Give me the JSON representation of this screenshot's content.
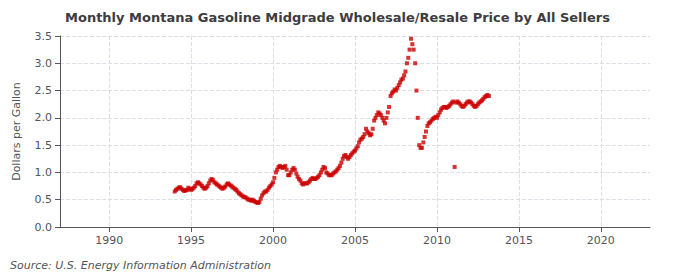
{
  "chart_data": {
    "type": "scatter",
    "title": "Monthly Montana Gasoline Midgrade Wholesale/Resale Price by All Sellers",
    "ylabel": "Dollars per Gallon",
    "annotations": [
      "Source: U.S. Energy Information Administration"
    ],
    "color": "#CC0000",
    "marker": "square",
    "grid": true,
    "xlim": [
      1987,
      2023
    ],
    "ylim": [
      0.0,
      3.5
    ],
    "xticks": [
      1990,
      1995,
      2000,
      2005,
      2010,
      2015,
      2020
    ],
    "yticks": [
      {
        "value": 0.0,
        "label": "0.0"
      },
      0.5,
      {
        "value": 1.0,
        "label": "1.0"
      },
      1.5,
      {
        "value": 2.0,
        "label": "2.0"
      },
      2.5,
      {
        "value": 3.0,
        "label": "3.0"
      },
      3.5
    ],
    "x": [
      1994.0,
      1994.08,
      1994.17,
      1994.25,
      1994.33,
      1994.42,
      1994.5,
      1994.58,
      1994.67,
      1994.75,
      1994.83,
      1994.92,
      1995.0,
      1995.08,
      1995.17,
      1995.25,
      1995.33,
      1995.42,
      1995.5,
      1995.58,
      1995.67,
      1995.75,
      1995.83,
      1995.92,
      1996.0,
      1996.08,
      1996.17,
      1996.25,
      1996.33,
      1996.42,
      1996.5,
      1996.58,
      1996.67,
      1996.75,
      1996.83,
      1996.92,
      1997.0,
      1997.08,
      1997.17,
      1997.25,
      1997.33,
      1997.42,
      1997.5,
      1997.58,
      1997.67,
      1997.75,
      1997.83,
      1997.92,
      1998.0,
      1998.08,
      1998.17,
      1998.25,
      1998.33,
      1998.42,
      1998.5,
      1998.58,
      1998.67,
      1998.75,
      1998.83,
      1998.92,
      1999.0,
      1999.08,
      1999.17,
      1999.25,
      1999.33,
      1999.42,
      1999.5,
      1999.58,
      1999.67,
      1999.75,
      1999.83,
      1999.92,
      2000.0,
      2000.08,
      2000.17,
      2000.25,
      2000.33,
      2000.42,
      2000.5,
      2000.58,
      2000.67,
      2000.75,
      2000.83,
      2000.92,
      2001.0,
      2001.08,
      2001.17,
      2001.25,
      2001.33,
      2001.42,
      2001.5,
      2001.58,
      2001.67,
      2001.75,
      2001.83,
      2001.92,
      2002.0,
      2002.08,
      2002.17,
      2002.25,
      2002.33,
      2002.42,
      2002.5,
      2002.58,
      2002.67,
      2002.75,
      2002.83,
      2002.92,
      2003.0,
      2003.08,
      2003.17,
      2003.25,
      2003.33,
      2003.42,
      2003.5,
      2003.58,
      2003.67,
      2003.75,
      2003.83,
      2003.92,
      2004.0,
      2004.08,
      2004.17,
      2004.25,
      2004.33,
      2004.42,
      2004.5,
      2004.58,
      2004.67,
      2004.75,
      2004.83,
      2004.92,
      2005.0,
      2005.08,
      2005.17,
      2005.25,
      2005.33,
      2005.42,
      2005.5,
      2005.58,
      2005.67,
      2005.75,
      2005.83,
      2005.92,
      2006.0,
      2006.08,
      2006.17,
      2006.25,
      2006.33,
      2006.42,
      2006.5,
      2006.58,
      2006.67,
      2006.75,
      2006.83,
      2006.92,
      2007.0,
      2007.08,
      2007.17,
      2007.25,
      2007.33,
      2007.42,
      2007.5,
      2007.58,
      2007.67,
      2007.75,
      2007.83,
      2007.92,
      2008.0,
      2008.08,
      2008.17,
      2008.25,
      2008.33,
      2008.42,
      2008.5,
      2008.58,
      2008.67,
      2008.75,
      2008.83,
      2008.92,
      2009.0,
      2009.08,
      2009.17,
      2009.25,
      2009.33,
      2009.42,
      2009.5,
      2009.58,
      2009.67,
      2009.75,
      2009.83,
      2009.92,
      2010.0,
      2010.08,
      2010.17,
      2010.25,
      2010.33,
      2010.42,
      2010.5,
      2010.58,
      2010.67,
      2010.75,
      2010.83,
      2010.92,
      2011.0,
      2011.08,
      2011.17,
      2011.25,
      2011.33,
      2011.42,
      2011.5,
      2011.58,
      2011.67,
      2011.75,
      2011.83,
      2011.92,
      2012.0,
      2012.08,
      2012.17,
      2012.25,
      2012.33,
      2012.42,
      2012.5,
      2012.58,
      2012.67,
      2012.75,
      2012.83,
      2012.92,
      2013.0,
      2013.08,
      2013.17
    ],
    "values": [
      0.65,
      0.68,
      0.7,
      0.72,
      0.73,
      0.7,
      0.68,
      0.66,
      0.67,
      0.68,
      0.72,
      0.7,
      0.68,
      0.7,
      0.72,
      0.75,
      0.8,
      0.82,
      0.8,
      0.78,
      0.75,
      0.72,
      0.7,
      0.72,
      0.75,
      0.8,
      0.85,
      0.88,
      0.86,
      0.82,
      0.8,
      0.78,
      0.76,
      0.74,
      0.72,
      0.7,
      0.72,
      0.74,
      0.78,
      0.8,
      0.78,
      0.76,
      0.74,
      0.72,
      0.7,
      0.68,
      0.65,
      0.62,
      0.6,
      0.58,
      0.56,
      0.55,
      0.54,
      0.52,
      0.5,
      0.5,
      0.48,
      0.5,
      0.48,
      0.46,
      0.45,
      0.44,
      0.46,
      0.52,
      0.58,
      0.62,
      0.65,
      0.65,
      0.68,
      0.72,
      0.75,
      0.78,
      0.82,
      0.9,
      1.0,
      1.05,
      1.1,
      1.12,
      1.1,
      1.08,
      1.1,
      1.12,
      1.05,
      0.95,
      0.95,
      1.0,
      1.05,
      1.08,
      1.05,
      0.98,
      0.92,
      0.88,
      0.85,
      0.8,
      0.78,
      0.8,
      0.8,
      0.8,
      0.82,
      0.85,
      0.88,
      0.9,
      0.88,
      0.88,
      0.9,
      0.92,
      0.95,
      1.0,
      1.05,
      1.1,
      1.08,
      1.0,
      0.98,
      0.95,
      0.95,
      0.95,
      0.98,
      1.0,
      1.02,
      1.05,
      1.08,
      1.12,
      1.18,
      1.25,
      1.3,
      1.32,
      1.28,
      1.25,
      1.28,
      1.32,
      1.35,
      1.38,
      1.4,
      1.44,
      1.48,
      1.55,
      1.6,
      1.62,
      1.65,
      1.7,
      1.8,
      1.75,
      1.72,
      1.68,
      1.7,
      1.8,
      1.95,
      2.0,
      2.05,
      2.1,
      2.08,
      2.05,
      2.0,
      1.95,
      1.9,
      2.0,
      2.1,
      2.2,
      2.4,
      2.45,
      2.48,
      2.52,
      2.5,
      2.55,
      2.6,
      2.65,
      2.7,
      2.72,
      2.78,
      2.85,
      3.0,
      3.1,
      3.25,
      3.45,
      3.35,
      3.25,
      3.0,
      2.5,
      2.0,
      1.5,
      1.45,
      1.45,
      1.55,
      1.65,
      1.75,
      1.85,
      1.9,
      1.92,
      1.95,
      1.98,
      2.0,
      2.02,
      2.0,
      2.05,
      2.1,
      2.15,
      2.18,
      2.2,
      2.2,
      2.18,
      2.2,
      2.22,
      2.25,
      2.28,
      2.3,
      1.1,
      2.28,
      2.3,
      2.28,
      2.25,
      2.22,
      2.2,
      2.22,
      2.25,
      2.28,
      2.3,
      2.3,
      2.28,
      2.25,
      2.22,
      2.2,
      2.22,
      2.25,
      2.28,
      2.3,
      2.32,
      2.35,
      2.38,
      2.4,
      2.42,
      2.4
    ]
  }
}
